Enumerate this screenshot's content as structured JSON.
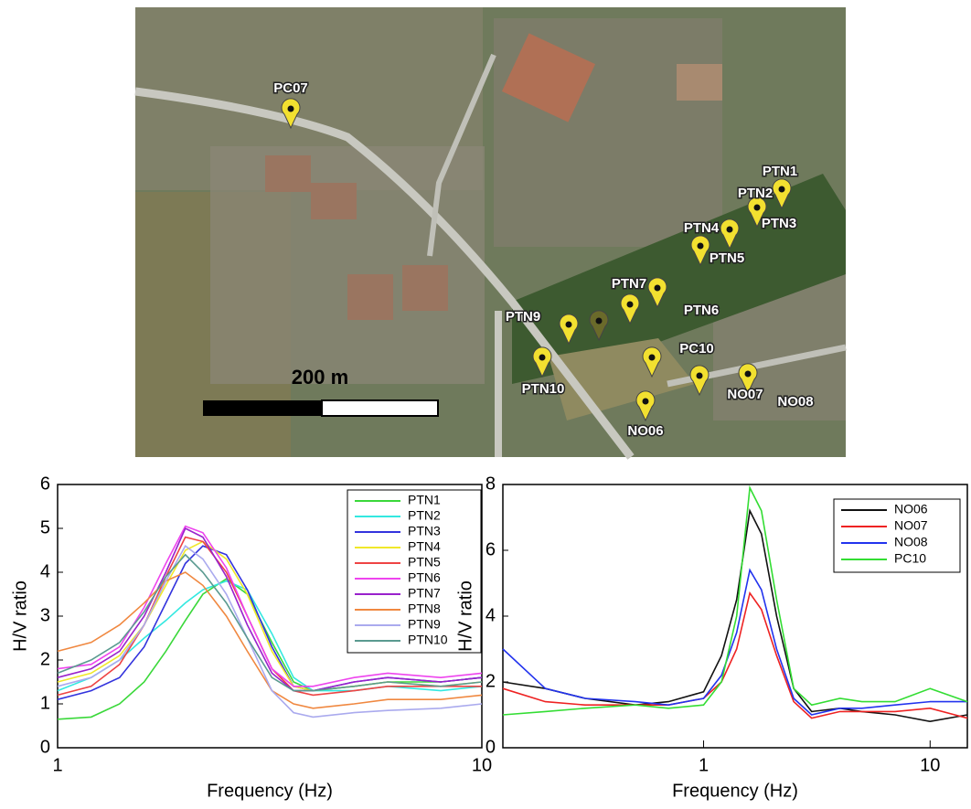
{
  "map": {
    "scale_label": "200 m",
    "labels": [
      "PC07",
      "PTN1",
      "PTN2",
      "PTN3",
      "PTN4",
      "PTN5",
      "PTN6",
      "PTN7",
      "PTN9",
      "PTN10",
      "PC10",
      "NO06",
      "NO07",
      "NO08"
    ]
  },
  "chart_data": [
    {
      "type": "line",
      "xscale": "log",
      "xlabel": "Frequency (Hz)",
      "ylabel": "H/V ratio",
      "xlim": [
        1,
        10
      ],
      "xticks": [
        1,
        10
      ],
      "ylim": [
        0,
        6
      ],
      "yticks": [
        0,
        1,
        2,
        3,
        4,
        5,
        6
      ],
      "legend": "top-right",
      "x": [
        1,
        1.2,
        1.4,
        1.6,
        1.8,
        2,
        2.2,
        2.5,
        2.8,
        3.2,
        3.6,
        4,
        5,
        6,
        8,
        10
      ],
      "series": [
        {
          "name": "PTN1",
          "color": "#3ad83a",
          "values": [
            0.65,
            0.7,
            1.0,
            1.5,
            2.2,
            2.9,
            3.5,
            3.85,
            3.5,
            2.4,
            1.5,
            1.3,
            1.4,
            1.5,
            1.5,
            1.6
          ]
        },
        {
          "name": "PTN2",
          "color": "#33e8e0",
          "values": [
            1.3,
            1.6,
            2.0,
            2.5,
            2.9,
            3.3,
            3.6,
            3.8,
            3.6,
            2.6,
            1.6,
            1.3,
            1.3,
            1.4,
            1.3,
            1.4
          ]
        },
        {
          "name": "PTN3",
          "color": "#3333dd",
          "values": [
            1.1,
            1.3,
            1.6,
            2.3,
            3.3,
            4.2,
            4.6,
            4.4,
            3.6,
            2.3,
            1.4,
            1.3,
            1.5,
            1.6,
            1.5,
            1.6
          ]
        },
        {
          "name": "PTN4",
          "color": "#f0e82a",
          "values": [
            1.5,
            1.7,
            2.1,
            2.8,
            3.7,
            4.5,
            4.7,
            4.3,
            3.5,
            2.2,
            1.4,
            1.3,
            1.4,
            1.5,
            1.4,
            1.5
          ]
        },
        {
          "name": "PTN5",
          "color": "#ee4444",
          "values": [
            1.2,
            1.4,
            1.9,
            2.8,
            3.9,
            4.8,
            4.7,
            4.0,
            3.0,
            1.8,
            1.3,
            1.2,
            1.3,
            1.4,
            1.4,
            1.4
          ]
        },
        {
          "name": "PTN6",
          "color": "#ee44ee",
          "values": [
            1.8,
            1.9,
            2.3,
            3.2,
            4.2,
            5.05,
            4.9,
            4.1,
            3.0,
            1.8,
            1.4,
            1.4,
            1.6,
            1.7,
            1.6,
            1.7
          ]
        },
        {
          "name": "PTN7",
          "color": "#9922cc",
          "values": [
            1.6,
            1.8,
            2.2,
            3.0,
            4.0,
            5.0,
            4.8,
            3.9,
            2.8,
            1.7,
            1.3,
            1.3,
            1.5,
            1.6,
            1.5,
            1.6
          ]
        },
        {
          "name": "PTN8",
          "color": "#f08840",
          "values": [
            2.2,
            2.4,
            2.8,
            3.3,
            3.8,
            4.0,
            3.7,
            3.0,
            2.2,
            1.3,
            1.0,
            0.9,
            1.0,
            1.1,
            1.1,
            1.2
          ]
        },
        {
          "name": "PTN9",
          "color": "#aaaaee",
          "values": [
            1.4,
            1.6,
            2.0,
            2.8,
            3.8,
            4.6,
            4.3,
            3.5,
            2.5,
            1.3,
            0.8,
            0.7,
            0.8,
            0.85,
            0.9,
            1.0
          ]
        },
        {
          "name": "PTN10",
          "color": "#5a9a90",
          "values": [
            1.7,
            2.0,
            2.4,
            3.1,
            3.9,
            4.4,
            4.0,
            3.3,
            2.5,
            1.6,
            1.3,
            1.3,
            1.4,
            1.5,
            1.4,
            1.5
          ]
        }
      ]
    },
    {
      "type": "line",
      "xscale": "log",
      "xlabel": "Frequency (Hz)",
      "ylabel": "H/V ratio",
      "xlim": [
        0.13,
        14.6
      ],
      "xticks": [
        1,
        10
      ],
      "ylim": [
        0,
        8
      ],
      "yticks": [
        0,
        2,
        4,
        6,
        8
      ],
      "legend": "top-right",
      "x": [
        0.13,
        0.2,
        0.3,
        0.5,
        0.7,
        1,
        1.2,
        1.4,
        1.6,
        1.8,
        2.1,
        2.5,
        3,
        4,
        5,
        7,
        10,
        14.6
      ],
      "series": [
        {
          "name": "NO06",
          "color": "#111111",
          "values": [
            2.0,
            1.8,
            1.5,
            1.3,
            1.4,
            1.7,
            2.8,
            4.5,
            7.2,
            6.5,
            4.0,
            1.8,
            1.1,
            1.2,
            1.1,
            1.0,
            0.8,
            1.0
          ]
        },
        {
          "name": "NO07",
          "color": "#ee2222",
          "values": [
            1.8,
            1.4,
            1.3,
            1.3,
            1.3,
            1.5,
            2.0,
            3.0,
            4.7,
            4.2,
            2.8,
            1.4,
            0.9,
            1.1,
            1.1,
            1.1,
            1.2,
            0.9
          ]
        },
        {
          "name": "NO08",
          "color": "#2233ee",
          "values": [
            3.0,
            1.8,
            1.5,
            1.4,
            1.3,
            1.5,
            2.2,
            3.5,
            5.4,
            4.8,
            3.0,
            1.5,
            1.0,
            1.2,
            1.2,
            1.3,
            1.4,
            1.4
          ]
        },
        {
          "name": "PC10",
          "color": "#33dd33",
          "values": [
            1.0,
            1.1,
            1.2,
            1.3,
            1.2,
            1.3,
            2.0,
            4.0,
            7.9,
            7.2,
            4.5,
            1.8,
            1.3,
            1.5,
            1.4,
            1.4,
            1.8,
            1.4
          ]
        }
      ]
    }
  ]
}
